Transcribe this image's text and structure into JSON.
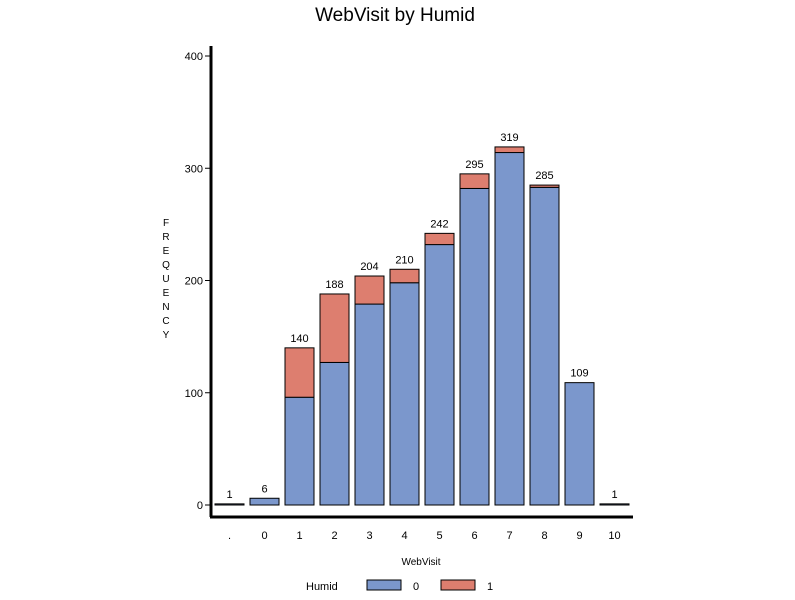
{
  "chart_data": {
    "type": "bar",
    "stacked": true,
    "title": "WebVisit by Humid",
    "xlabel": "WebVisit",
    "ylabel": "FREQUENCY",
    "categories": [
      ".",
      "0",
      "1",
      "2",
      "3",
      "4",
      "5",
      "6",
      "7",
      "8",
      "9",
      "10"
    ],
    "series": [
      {
        "name": "0",
        "color": "#7b97cc",
        "values": [
          1,
          6,
          96,
          127,
          179,
          198,
          232,
          282,
          314,
          283,
          109,
          1
        ]
      },
      {
        "name": "1",
        "color": "#dd7e6f",
        "values": [
          0,
          0,
          44,
          61,
          25,
          12,
          10,
          13,
          5,
          2,
          0,
          0
        ]
      }
    ],
    "totals": [
      "1",
      "6",
      "140",
      "188",
      "204",
      "210",
      "242",
      "295",
      "319",
      "285",
      "109",
      "1"
    ],
    "ylim": [
      0,
      410
    ],
    "yticks": [
      0,
      100,
      200,
      300,
      400
    ],
    "grid": false,
    "legend_title": "Humid",
    "legend_position": "bottom"
  }
}
